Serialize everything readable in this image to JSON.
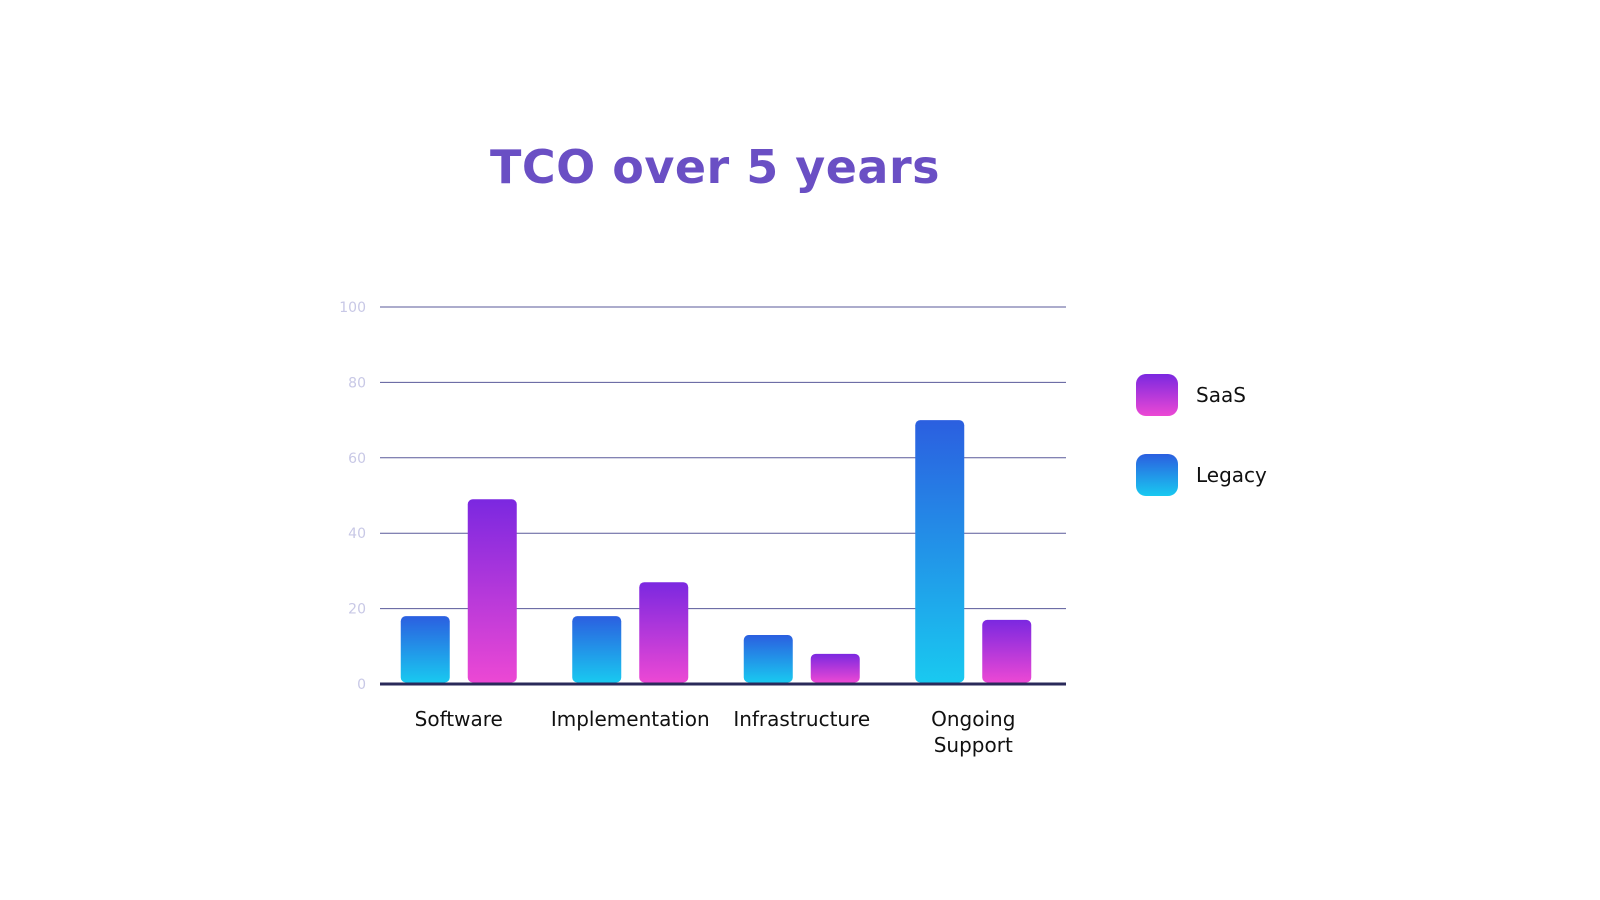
{
  "chart_data": {
    "type": "bar",
    "title": "TCO over 5 years",
    "categories": [
      "Software",
      "Implementation",
      "Infrastructure",
      "Ongoing Support"
    ],
    "category_label_lines": [
      [
        "Software"
      ],
      [
        "Implementation"
      ],
      [
        "Infrastructure"
      ],
      [
        "Ongoing",
        "Support"
      ]
    ],
    "series": [
      {
        "name": "Legacy",
        "values": [
          18,
          18,
          13,
          70
        ],
        "color_top": "#2b5fe0",
        "color_bottom": "#19c9f0"
      },
      {
        "name": "SaaS",
        "values": [
          49,
          27,
          8,
          17
        ],
        "color_top": "#7b28e0",
        "color_bottom": "#ec48d4"
      }
    ],
    "ylim": [
      0,
      100
    ],
    "yticks": [
      0,
      20,
      40,
      60,
      80,
      100
    ],
    "grid": true,
    "legend_position": "right",
    "legend_order": [
      "SaaS",
      "Legacy"
    ],
    "colors": {
      "title": "#6a4fc4",
      "grid": "#5a5a9a",
      "axis": "#2a2a5a",
      "tick_label": "#c8c8e6"
    }
  }
}
